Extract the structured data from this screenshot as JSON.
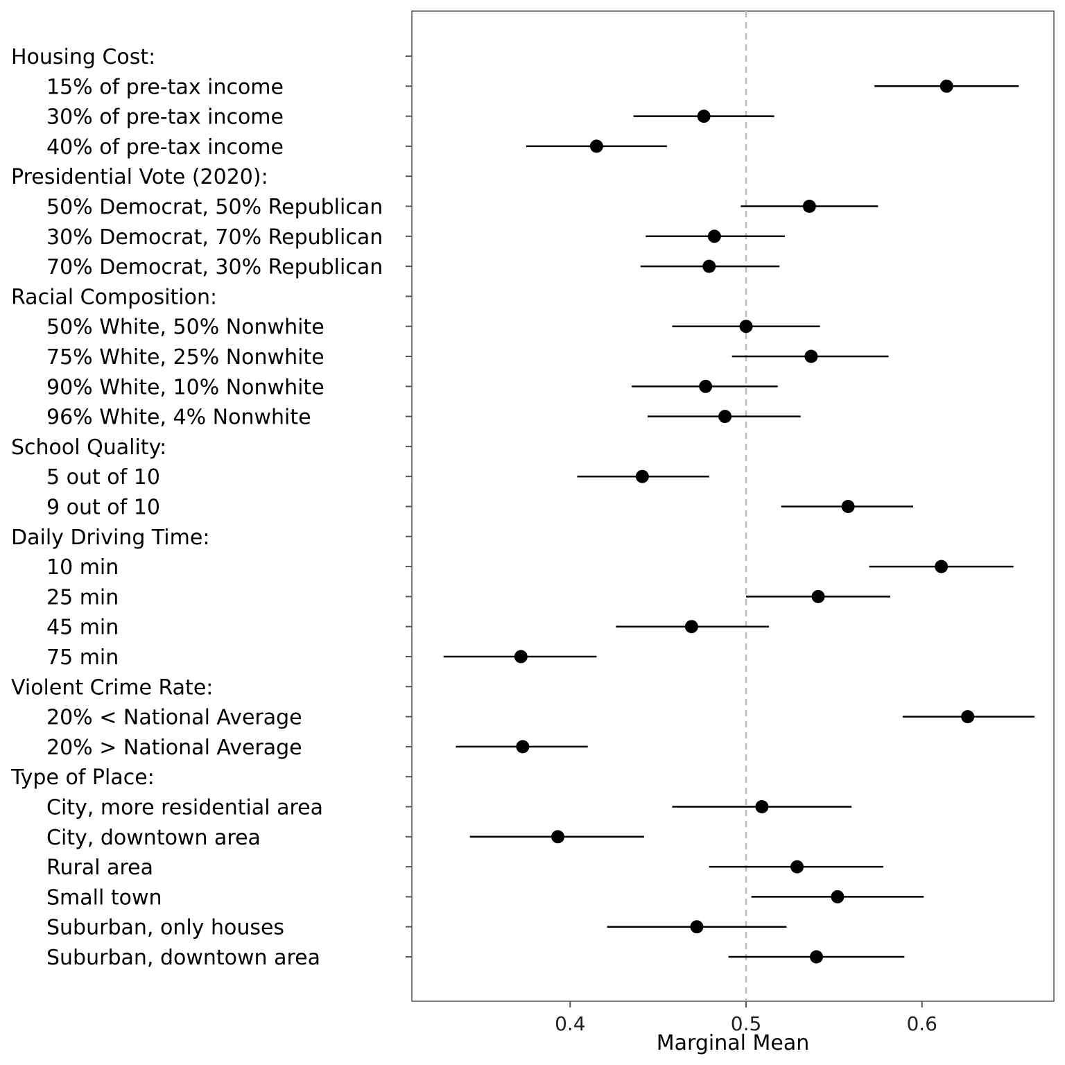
{
  "chart_data": {
    "type": "scatter",
    "xlabel": "Marginal Mean",
    "ylabel": "",
    "xlim": [
      0.31,
      0.675
    ],
    "x_ticks": [
      "0.4",
      "0.5",
      "0.6"
    ],
    "x_tick_values": [
      0.4,
      0.5,
      0.6
    ],
    "reference_line": 0.5,
    "grid": false,
    "point_color": "#000000",
    "reference_color": "#bbbbbb",
    "rows": [
      {
        "label": "Housing Cost:",
        "header": true
      },
      {
        "label": "15% of pre-tax income",
        "estimate": 0.614,
        "lower": 0.573,
        "upper": 0.655
      },
      {
        "label": "30% of pre-tax income",
        "estimate": 0.476,
        "lower": 0.436,
        "upper": 0.516
      },
      {
        "label": "40% of pre-tax income",
        "estimate": 0.415,
        "lower": 0.375,
        "upper": 0.455
      },
      {
        "label": "Presidential Vote (2020):",
        "header": true
      },
      {
        "label": "50% Democrat, 50% Republican",
        "estimate": 0.536,
        "lower": 0.497,
        "upper": 0.575
      },
      {
        "label": "30% Democrat, 70% Republican",
        "estimate": 0.482,
        "lower": 0.443,
        "upper": 0.522
      },
      {
        "label": "70% Democrat, 30% Republican",
        "estimate": 0.479,
        "lower": 0.44,
        "upper": 0.519
      },
      {
        "label": "Racial Composition:",
        "header": true
      },
      {
        "label": "50% White, 50% Nonwhite",
        "estimate": 0.5,
        "lower": 0.458,
        "upper": 0.542
      },
      {
        "label": "75% White, 25% Nonwhite",
        "estimate": 0.537,
        "lower": 0.492,
        "upper": 0.581
      },
      {
        "label": "90% White, 10% Nonwhite",
        "estimate": 0.477,
        "lower": 0.435,
        "upper": 0.518
      },
      {
        "label": "96% White, 4% Nonwhite",
        "estimate": 0.488,
        "lower": 0.444,
        "upper": 0.531
      },
      {
        "label": "School Quality:",
        "header": true
      },
      {
        "label": "5 out of 10",
        "estimate": 0.441,
        "lower": 0.404,
        "upper": 0.479
      },
      {
        "label": "9 out of 10",
        "estimate": 0.558,
        "lower": 0.52,
        "upper": 0.595
      },
      {
        "label": "Daily Driving Time:",
        "header": true
      },
      {
        "label": "10 min",
        "estimate": 0.611,
        "lower": 0.57,
        "upper": 0.652
      },
      {
        "label": "25 min",
        "estimate": 0.541,
        "lower": 0.5,
        "upper": 0.582
      },
      {
        "label": "45 min",
        "estimate": 0.469,
        "lower": 0.426,
        "upper": 0.513
      },
      {
        "label": "75 min",
        "estimate": 0.372,
        "lower": 0.328,
        "upper": 0.415
      },
      {
        "label": "Violent Crime Rate:",
        "header": true
      },
      {
        "label": "20% < National Average",
        "estimate": 0.626,
        "lower": 0.589,
        "upper": 0.664
      },
      {
        "label": "20% > National Average",
        "estimate": 0.373,
        "lower": 0.335,
        "upper": 0.41
      },
      {
        "label": "Type of Place:",
        "header": true
      },
      {
        "label": "City, more residential area",
        "estimate": 0.509,
        "lower": 0.458,
        "upper": 0.56
      },
      {
        "label": "City, downtown area",
        "estimate": 0.393,
        "lower": 0.343,
        "upper": 0.442
      },
      {
        "label": "Rural area",
        "estimate": 0.529,
        "lower": 0.479,
        "upper": 0.578
      },
      {
        "label": "Small town",
        "estimate": 0.552,
        "lower": 0.503,
        "upper": 0.601
      },
      {
        "label": "Suburban, only houses",
        "estimate": 0.472,
        "lower": 0.421,
        "upper": 0.523
      },
      {
        "label": "Suburban, downtown area",
        "estimate": 0.54,
        "lower": 0.49,
        "upper": 0.59
      }
    ]
  }
}
